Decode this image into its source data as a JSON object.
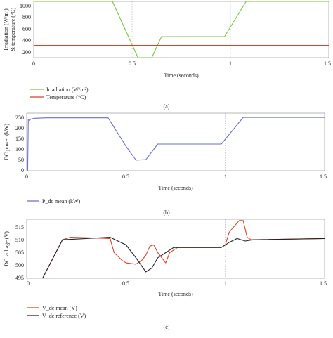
{
  "figure": {
    "panels": [
      {
        "caption": "(a)"
      },
      {
        "caption": "(b)"
      },
      {
        "caption": "(c)"
      }
    ]
  },
  "colors": {
    "green": "#7dc242",
    "red": "#d9412b",
    "blue": "#6e6ec7",
    "black": "#222222",
    "grid": "#aaaaaa"
  },
  "chart_data": [
    {
      "type": "line",
      "xlabel": "Time (seconds)",
      "ylabel_lines": [
        "Irradiation (W/m²)",
        "& temperature (°C)"
      ],
      "xlim": [
        0,
        1.5
      ],
      "ylim": [
        200,
        1000
      ],
      "xticks": [
        "0",
        "0.5",
        "1",
        "1.5"
      ],
      "yticks": [
        "1000",
        "800",
        "600",
        "400",
        "200"
      ],
      "grid": true,
      "legend_position": "below",
      "series": [
        {
          "name": "Irradiation (W/m²)",
          "color": "#7dc242",
          "points": [
            [
              0,
              1000
            ],
            [
              0.4,
              1000
            ],
            [
              0.53,
              200
            ],
            [
              0.6,
              200
            ],
            [
              0.65,
              500
            ],
            [
              0.97,
              500
            ],
            [
              1.08,
              1000
            ],
            [
              1.5,
              1000
            ]
          ]
        },
        {
          "name": "Temperature (°C)",
          "color": "#d9412b",
          "points": [
            [
              0,
              375
            ],
            [
              1.5,
              375
            ]
          ]
        }
      ]
    },
    {
      "type": "line",
      "xlabel": "Time (seconds)",
      "ylabel_lines": [
        "DC power (kW)"
      ],
      "xlim": [
        0,
        1.5
      ],
      "ylim": [
        0,
        270
      ],
      "xticks": [
        "0",
        "0.5",
        "1",
        "1.5"
      ],
      "yticks": [
        "250",
        "200",
        "150",
        "100",
        "50",
        "0"
      ],
      "grid": true,
      "legend_position": "below",
      "series": [
        {
          "name": "P_dc mean (kW)",
          "color": "#6e6ec7",
          "points": [
            [
              0.005,
              0
            ],
            [
              0.008,
              240
            ],
            [
              0.015,
              235
            ],
            [
              0.02,
              242
            ],
            [
              0.04,
              246
            ],
            [
              0.1,
              248
            ],
            [
              0.41,
              248
            ],
            [
              0.5,
              115
            ],
            [
              0.55,
              50
            ],
            [
              0.6,
              52
            ],
            [
              0.66,
              125
            ],
            [
              0.98,
              125
            ],
            [
              1.09,
              250
            ],
            [
              1.5,
              250
            ]
          ]
        }
      ]
    },
    {
      "type": "line",
      "xlabel": "Time (seconds)",
      "ylabel_lines": [
        "DC voltage (V)"
      ],
      "xlim": [
        0,
        1.5
      ],
      "ylim": [
        495,
        518
      ],
      "xticks": [
        "0",
        "0.5",
        "1",
        "1.5"
      ],
      "yticks": [
        "515",
        "510",
        "505",
        "500",
        "495"
      ],
      "grid": true,
      "legend_position": "below",
      "series": [
        {
          "name": "V_dc mean (V)",
          "color": "#d9412b",
          "points": [
            [
              0.08,
              494
            ],
            [
              0.18,
              510
            ],
            [
              0.22,
              511
            ],
            [
              0.42,
              510.5
            ],
            [
              0.44,
              505
            ],
            [
              0.48,
              502
            ],
            [
              0.5,
              501
            ],
            [
              0.55,
              500.5
            ],
            [
              0.58,
              502
            ],
            [
              0.6,
              504
            ],
            [
              0.62,
              507.5
            ],
            [
              0.64,
              508
            ],
            [
              0.66,
              505
            ],
            [
              0.69,
              502
            ],
            [
              0.7,
              501
            ],
            [
              0.72,
              505
            ],
            [
              0.74,
              506
            ],
            [
              0.76,
              507
            ],
            [
              0.98,
              507
            ],
            [
              1.0,
              508
            ],
            [
              1.02,
              513
            ],
            [
              1.07,
              517.5
            ],
            [
              1.09,
              517.5
            ],
            [
              1.11,
              511
            ],
            [
              1.13,
              510
            ],
            [
              1.5,
              510.5
            ]
          ]
        },
        {
          "name": "V_dc reference (V)",
          "color": "#222222",
          "points": [
            [
              0.08,
              494
            ],
            [
              0.18,
              510
            ],
            [
              0.3,
              510.5
            ],
            [
              0.42,
              511
            ],
            [
              0.5,
              508
            ],
            [
              0.55,
              503
            ],
            [
              0.6,
              497.5
            ],
            [
              0.63,
              499
            ],
            [
              0.66,
              503
            ],
            [
              0.7,
              505
            ],
            [
              0.74,
              507
            ],
            [
              0.98,
              507
            ],
            [
              1.02,
              509
            ],
            [
              1.06,
              510.5
            ],
            [
              1.1,
              509.5
            ],
            [
              1.14,
              510
            ],
            [
              1.5,
              510.5
            ]
          ]
        }
      ]
    }
  ]
}
